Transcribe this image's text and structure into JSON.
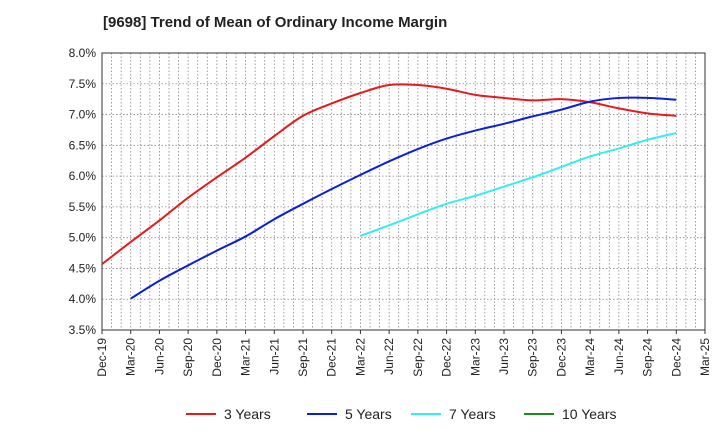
{
  "chart_data": {
    "type": "line",
    "title": "[9698]  Trend of Mean of Ordinary Income Margin",
    "xlabel": "",
    "ylabel": "",
    "x": [
      "Dec-19",
      "Mar-20",
      "Jun-20",
      "Sep-20",
      "Dec-20",
      "Mar-21",
      "Jun-21",
      "Sep-21",
      "Dec-21",
      "Mar-22",
      "Jun-22",
      "Sep-22",
      "Dec-22",
      "Mar-23",
      "Jun-23",
      "Sep-23",
      "Dec-23",
      "Mar-24",
      "Jun-24",
      "Sep-24",
      "Dec-24",
      "Mar-25"
    ],
    "ylim": [
      3.5,
      8.0
    ],
    "yticks": [
      "3.5%",
      "4.0%",
      "4.5%",
      "5.0%",
      "5.5%",
      "6.0%",
      "6.5%",
      "7.0%",
      "7.5%",
      "8.0%"
    ],
    "grid": true,
    "legend_position": "bottom",
    "series": [
      {
        "name": "3 Years",
        "color": "#e41a1c",
        "values": [
          4.57,
          4.93,
          5.28,
          5.65,
          5.98,
          6.3,
          6.65,
          6.98,
          7.18,
          7.35,
          7.48,
          7.48,
          7.42,
          7.32,
          7.27,
          7.23,
          7.25,
          7.2,
          7.1,
          7.02,
          6.98,
          null
        ]
      },
      {
        "name": "5 Years",
        "color": "#0b1fd8",
        "values": [
          null,
          4.01,
          4.3,
          4.55,
          4.79,
          5.02,
          5.3,
          5.55,
          5.79,
          6.02,
          6.24,
          6.44,
          6.61,
          6.74,
          6.85,
          6.97,
          7.08,
          7.21,
          7.27,
          7.27,
          7.24,
          null
        ]
      },
      {
        "name": "7 Years",
        "color": "#33eeee",
        "values": [
          null,
          null,
          null,
          null,
          null,
          null,
          null,
          null,
          null,
          5.03,
          5.2,
          5.38,
          5.55,
          5.68,
          5.83,
          5.98,
          6.15,
          6.32,
          6.45,
          6.59,
          6.7,
          null
        ]
      },
      {
        "name": "10 Years",
        "color": "#1a8a1a",
        "values": [
          null,
          null,
          null,
          null,
          null,
          null,
          null,
          null,
          null,
          null,
          null,
          null,
          null,
          null,
          null,
          null,
          null,
          null,
          null,
          null,
          null,
          null
        ]
      }
    ]
  }
}
